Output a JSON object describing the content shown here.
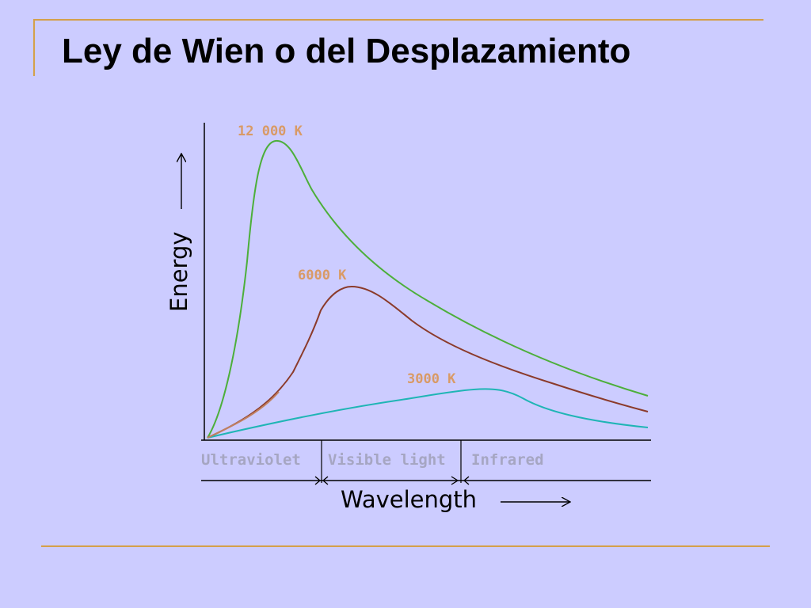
{
  "slide": {
    "title": "Ley de Wien o del Desplazamiento"
  },
  "colors": {
    "background": "#ccccff",
    "rule": "#d4a04a",
    "curve_12000": "#4caf3a",
    "curve_6000": "#8b3a2a",
    "curve_3000": "#1fb5b5",
    "curve_label": "#d99a66",
    "region_label": "#a6a6c2",
    "axis": "#000000"
  },
  "diagram": {
    "y_axis_label": "Energy",
    "x_axis_label": "Wavelength",
    "curves": [
      {
        "id": "t12000",
        "label": "12 000 K"
      },
      {
        "id": "t6000",
        "label": "6000 K"
      },
      {
        "id": "t3000",
        "label": "3000 K"
      }
    ],
    "regions": [
      {
        "id": "uv",
        "label": "Ultraviolet"
      },
      {
        "id": "visible",
        "label": "Visible light"
      },
      {
        "id": "ir",
        "label": "Infrared"
      }
    ]
  }
}
